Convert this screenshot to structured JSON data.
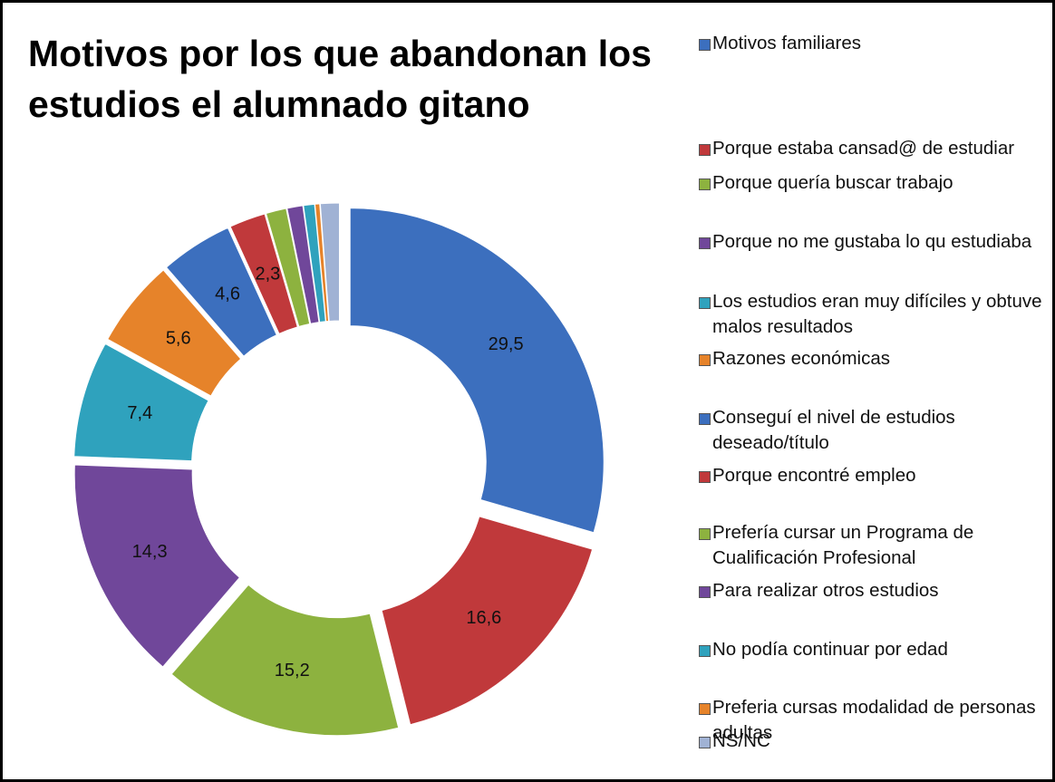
{
  "chart_data": {
    "type": "donut",
    "title": "Motivos por los que abandonan los estudios el alumnado gitano",
    "categories": [
      "Motivos familiares",
      "Porque estaba cansad@ de estudiar",
      "Porque quería buscar trabajo",
      "Porque no me gustaba lo qu estudiaba",
      "Los estudios eran muy difíciles y obtuve malos resultados",
      "Razones económicas",
      "Conseguí el nivel de estudios deseado/título",
      "Porque encontré empleo",
      "Prefería cursar un Programa de Cualificación Profesional",
      "Para realizar otros estudios",
      "No podía continuar por edad",
      "Preferia cursas modalidad de personas adultas",
      "NS/NC"
    ],
    "values": [
      29.5,
      16.6,
      15.2,
      14.3,
      7.4,
      5.6,
      4.6,
      2.3,
      1.3,
      1.0,
      0.7,
      0.3,
      1.2
    ],
    "value_labels": [
      "29,5",
      "16,6",
      "15,2",
      "14,3",
      "7,4",
      "5,6",
      "4,6",
      "2,3",
      null,
      null,
      null,
      null,
      null
    ],
    "colors": [
      "#3c6fbe",
      "#c0393b",
      "#8db23f",
      "#70479a",
      "#2fa2bd",
      "#e6832a",
      "#3c6fbe",
      "#c0393b",
      "#8db23f",
      "#70479a",
      "#2fa2bd",
      "#e6832a",
      "#a0b2d4"
    ],
    "legend": "right"
  }
}
